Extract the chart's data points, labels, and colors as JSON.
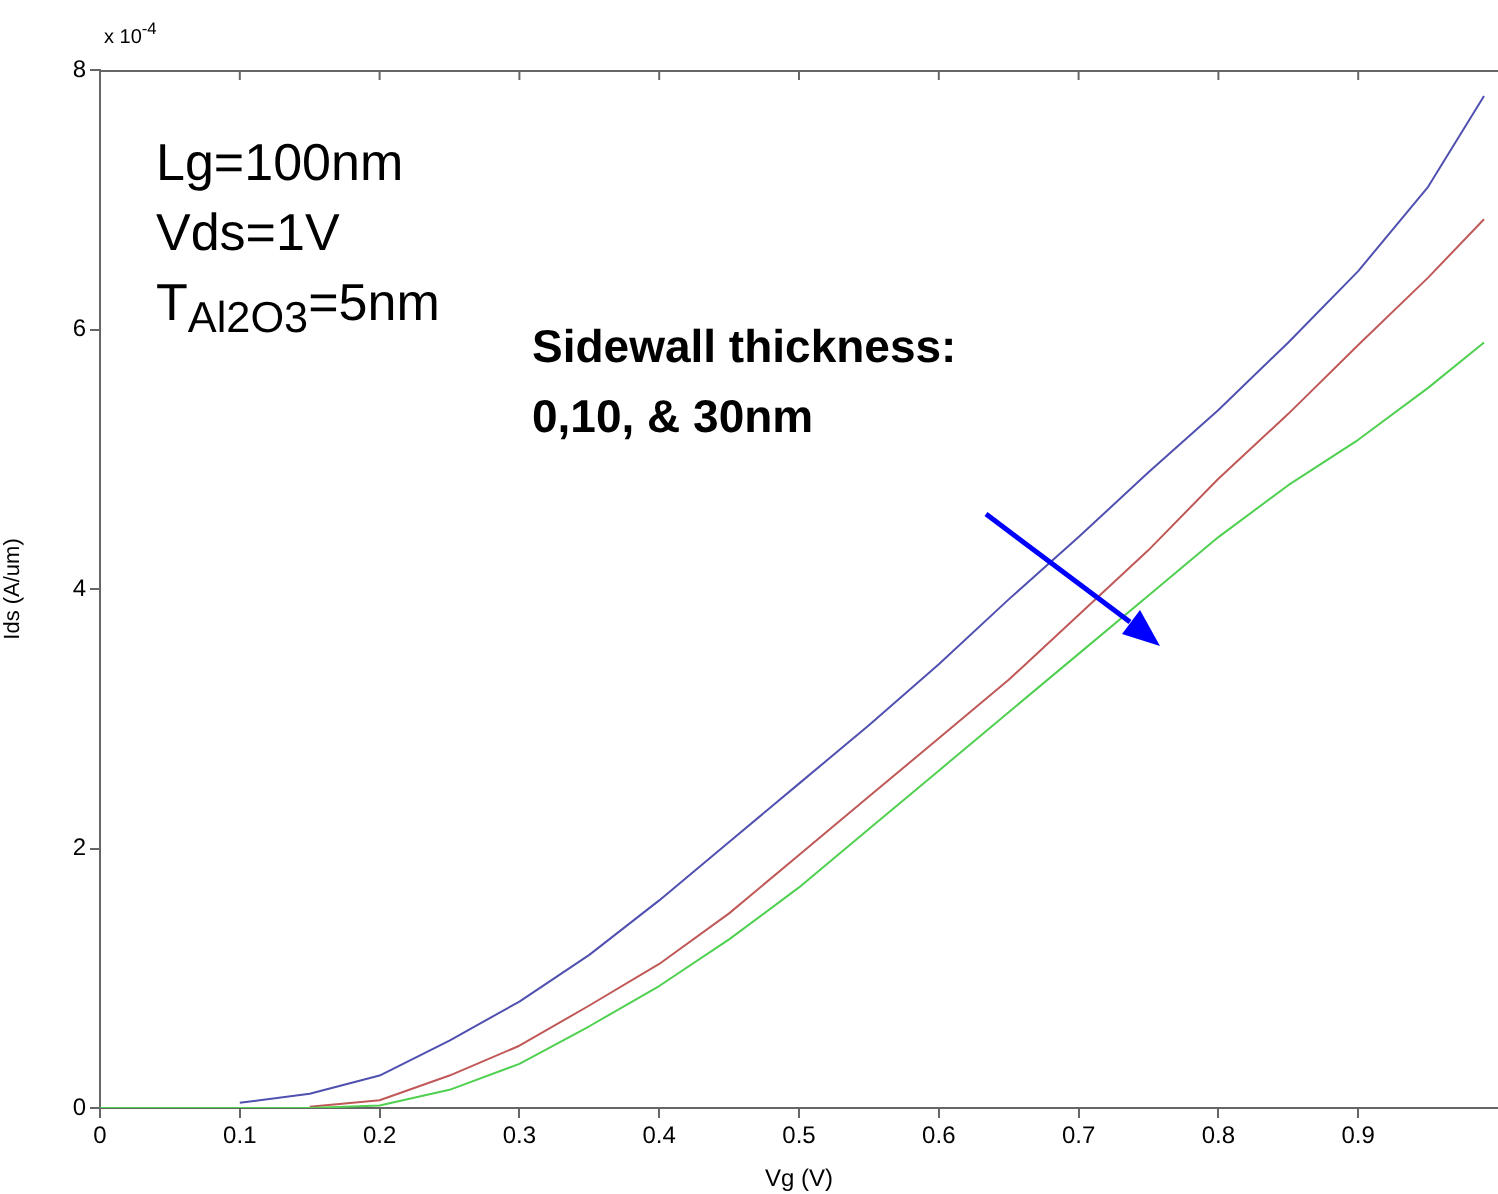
{
  "chart_data": {
    "type": "line",
    "xlabel": "Vg (V)",
    "ylabel": "Ids (A/um)",
    "x": [
      0,
      0.05,
      0.1,
      0.15,
      0.2,
      0.25,
      0.3,
      0.35,
      0.4,
      0.45,
      0.5,
      0.55,
      0.6,
      0.65,
      0.7,
      0.75,
      0.8,
      0.85,
      0.9,
      0.95,
      0.99
    ],
    "series": [
      {
        "color": "#5050b0",
        "values": [
          null,
          null,
          0.04,
          0.11,
          0.25,
          0.52,
          0.82,
          1.18,
          1.6,
          2.05,
          2.5,
          2.95,
          3.42,
          3.92,
          4.4,
          4.9,
          5.38,
          5.9,
          6.45,
          7.1,
          7.8
        ]
      },
      {
        "color": "#c05858",
        "values": [
          null,
          null,
          null,
          0.01,
          0.06,
          0.25,
          0.48,
          0.79,
          1.11,
          1.5,
          1.95,
          2.4,
          2.85,
          3.3,
          3.8,
          4.3,
          4.85,
          5.35,
          5.88,
          6.4,
          6.85
        ]
      },
      {
        "color": "#50d050",
        "values": [
          0,
          0,
          0,
          0,
          0.02,
          0.14,
          0.34,
          0.63,
          0.94,
          1.3,
          1.7,
          2.15,
          2.6,
          3.05,
          3.5,
          3.95,
          4.4,
          4.8,
          5.15,
          5.55,
          5.9
        ]
      }
    ],
    "xlim": [
      0,
      1
    ],
    "xticks": [
      0,
      0.1,
      0.2,
      0.3,
      0.4,
      0.5,
      0.6,
      0.7,
      0.8,
      0.9
    ],
    "ylim": [
      0,
      8
    ],
    "yticks": [
      0,
      2,
      4,
      6,
      8
    ],
    "annotations": [
      "x 10$^{-4}$",
      "Lg=100nm",
      "Vds=1V",
      "T$_{Al2O3}$=5nm",
      "Sidewall thickness:",
      "0,10, & 30nm"
    ],
    "grid": false,
    "legend": false,
    "marker": "none",
    "line_style": "solid"
  }
}
